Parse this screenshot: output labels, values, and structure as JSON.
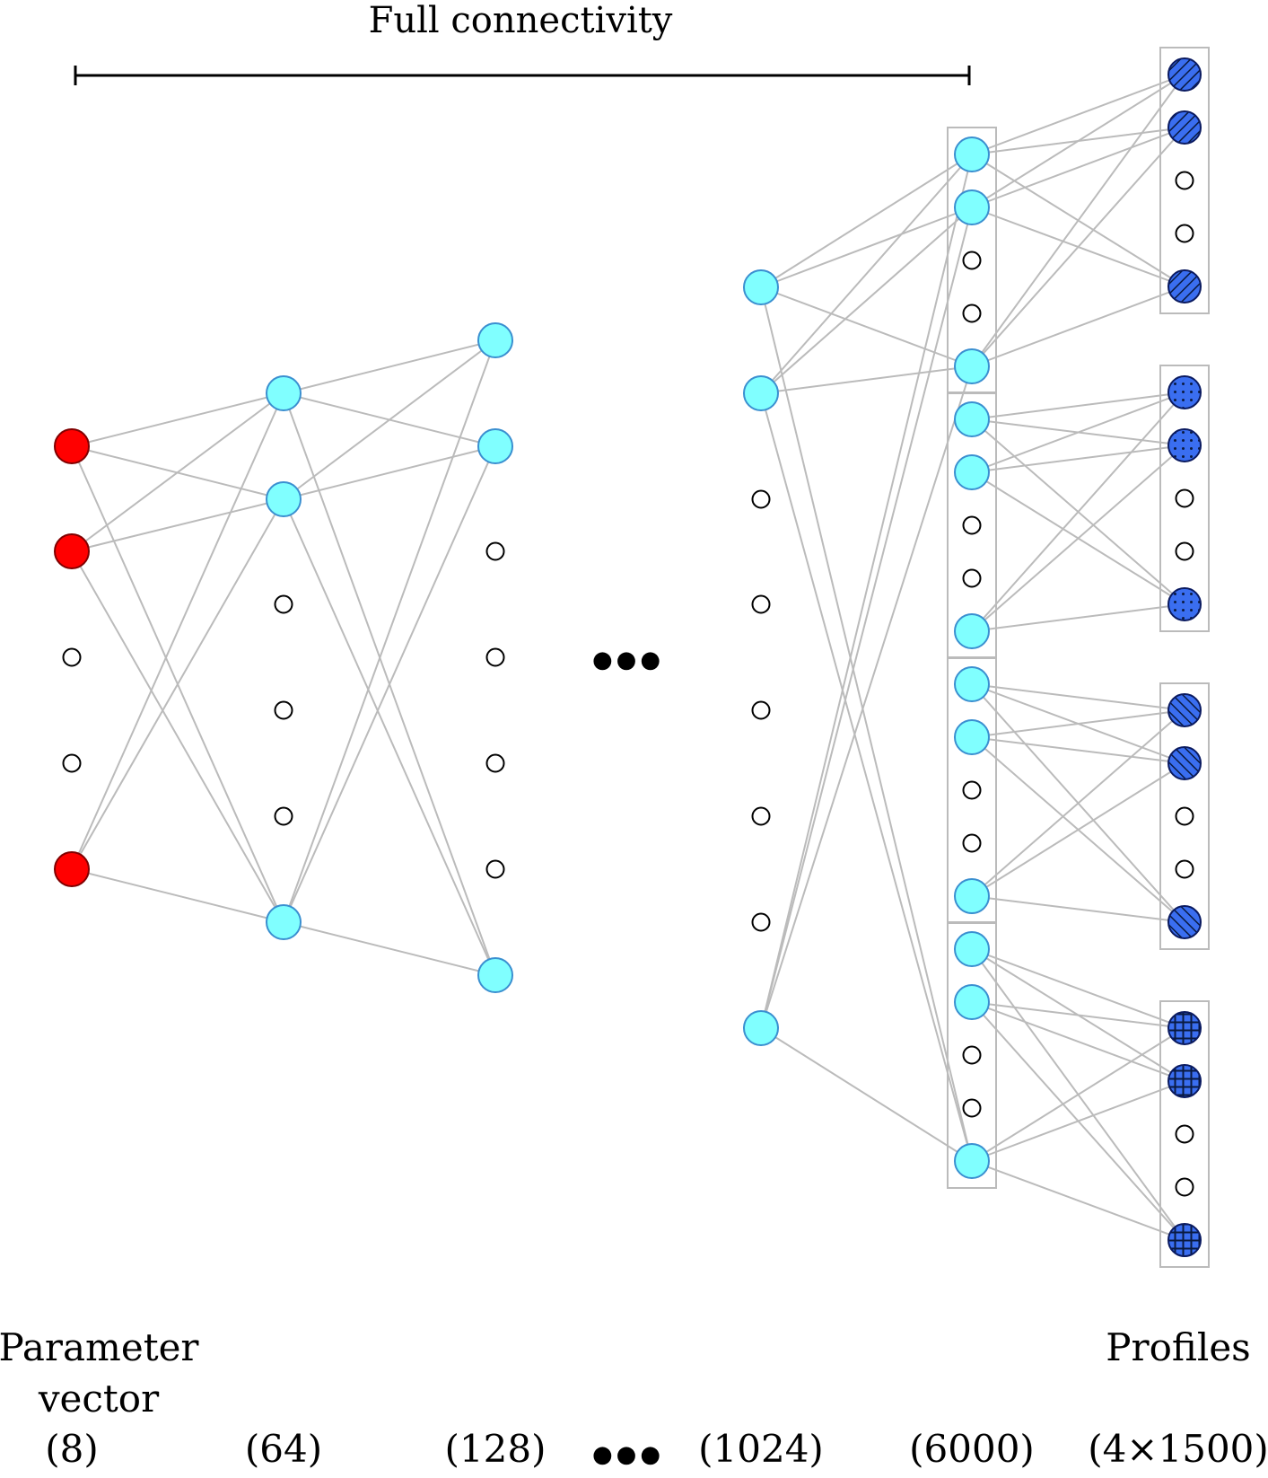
{
  "title": "Full connectivity",
  "input_label_line1": "Parameter",
  "input_label_line2": "vector",
  "output_label": "Profiles",
  "layer_sizes": [
    "(8)",
    "(64)",
    "(128)",
    "(1024)",
    "(6000)",
    "(4×1500)"
  ],
  "ellipsis": "●●●",
  "colors": {
    "input_node": "#ff0000",
    "hidden_node": "#80ffff",
    "hidden_node_stroke": "#3a8fd0",
    "output_node": "#3a6ef0",
    "edge": "#bbbbbb",
    "group_box": "#bbbbbb"
  },
  "output_patterns": [
    "diagonal-back-hatch",
    "dots",
    "diagonal-hatch",
    "grid"
  ]
}
